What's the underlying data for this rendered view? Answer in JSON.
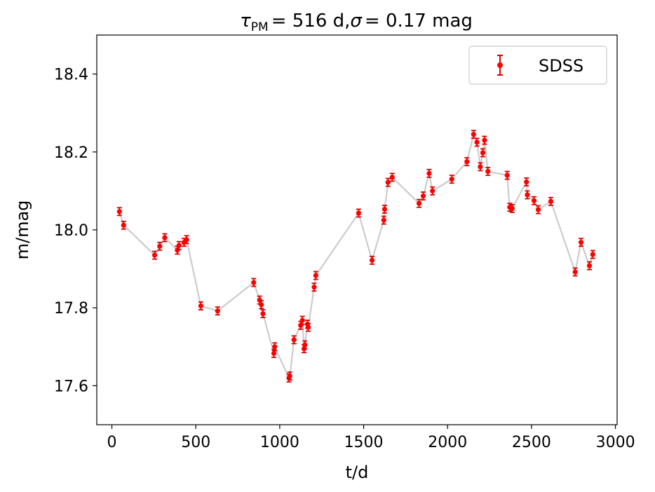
{
  "chart_data": {
    "type": "scatter",
    "title": {
      "tau_symbol": "τ",
      "tau_subscript": "PM",
      "tau_value": "= 516 d,",
      "sigma_symbol": "σ",
      "sigma_value": "= 0.17 mag"
    },
    "xlabel": "t/d",
    "ylabel": "m/mag",
    "xlim": [
      -90,
      3010
    ],
    "ylim": [
      17.5,
      18.5
    ],
    "xticks": [
      0,
      500,
      1000,
      1500,
      2000,
      2500,
      3000
    ],
    "yticks": [
      17.6,
      17.8,
      18.0,
      18.2,
      18.4
    ],
    "xtick_labels": [
      "0",
      "500",
      "1000",
      "1500",
      "2000",
      "2500",
      "3000"
    ],
    "ytick_labels": [
      "17.6",
      "17.8",
      "18.0",
      "18.2",
      "18.4"
    ],
    "grid": false,
    "legend": {
      "position": "top-right",
      "entries": [
        "SDSS"
      ]
    },
    "colors": {
      "points": "#ff0000",
      "errorbars": "#e00000",
      "line": "#cccccc"
    },
    "series": [
      {
        "name": "SDSS",
        "error": 0.01,
        "points": [
          [
            45,
            18.047
          ],
          [
            70,
            18.012
          ],
          [
            255,
            17.935
          ],
          [
            285,
            17.958
          ],
          [
            315,
            17.98
          ],
          [
            390,
            17.948
          ],
          [
            400,
            17.96
          ],
          [
            430,
            17.968
          ],
          [
            445,
            17.975
          ],
          [
            530,
            17.805
          ],
          [
            630,
            17.792
          ],
          [
            845,
            17.865
          ],
          [
            880,
            17.82
          ],
          [
            890,
            17.808
          ],
          [
            900,
            17.785
          ],
          [
            965,
            17.683
          ],
          [
            970,
            17.7
          ],
          [
            1055,
            17.62
          ],
          [
            1060,
            17.625
          ],
          [
            1085,
            17.718
          ],
          [
            1125,
            17.755
          ],
          [
            1135,
            17.768
          ],
          [
            1145,
            17.695
          ],
          [
            1150,
            17.705
          ],
          [
            1165,
            17.758
          ],
          [
            1170,
            17.75
          ],
          [
            1205,
            17.853
          ],
          [
            1215,
            17.883
          ],
          [
            1470,
            18.043
          ],
          [
            1550,
            17.922
          ],
          [
            1620,
            18.025
          ],
          [
            1625,
            18.053
          ],
          [
            1645,
            18.122
          ],
          [
            1670,
            18.135
          ],
          [
            1830,
            18.068
          ],
          [
            1855,
            18.087
          ],
          [
            1890,
            18.145
          ],
          [
            1910,
            18.1
          ],
          [
            2025,
            18.13
          ],
          [
            2115,
            18.175
          ],
          [
            2155,
            18.245
          ],
          [
            2175,
            18.225
          ],
          [
            2195,
            18.162
          ],
          [
            2210,
            18.198
          ],
          [
            2220,
            18.23
          ],
          [
            2240,
            18.15
          ],
          [
            2355,
            18.14
          ],
          [
            2370,
            18.058
          ],
          [
            2385,
            18.055
          ],
          [
            2470,
            18.123
          ],
          [
            2475,
            18.09
          ],
          [
            2515,
            18.075
          ],
          [
            2540,
            18.052
          ],
          [
            2615,
            18.073
          ],
          [
            2760,
            17.892
          ],
          [
            2795,
            17.968
          ],
          [
            2845,
            17.908
          ],
          [
            2865,
            17.937
          ]
        ]
      }
    ]
  }
}
